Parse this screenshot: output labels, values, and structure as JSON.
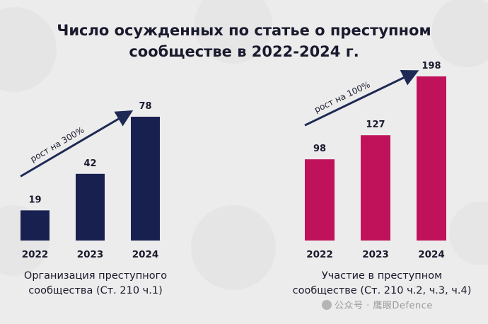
{
  "page": {
    "title_line1": "Число осужденных по статье о преступном",
    "title_line2": "сообществе в 2022-2024 г.",
    "watermark": "公众号 · 鹰眼Defence"
  },
  "chart_data": [
    {
      "type": "bar",
      "categories": [
        "2022",
        "2023",
        "2024"
      ],
      "values": [
        19,
        42,
        78
      ],
      "color": "#17204f",
      "annotation": "рост на 300%",
      "caption_line1": "Организация преступного",
      "caption_line2": "сообщества (Ст. 210 ч.1)"
    },
    {
      "type": "bar",
      "categories": [
        "2022",
        "2023",
        "2024"
      ],
      "values": [
        98,
        127,
        198
      ],
      "color": "#c0125b",
      "annotation": "рост на 100%",
      "caption_line1": "Участие в преступном",
      "caption_line2": "сообществе (Ст. 210 ч.2, ч.3, ч.4)"
    }
  ]
}
